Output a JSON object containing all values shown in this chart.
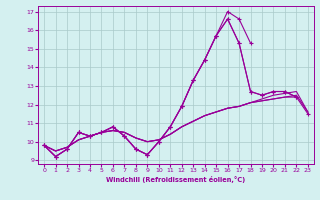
{
  "bg_color": "#d4f0f0",
  "grid_color": "#aacaca",
  "line_color": "#990099",
  "xlim": [
    -0.5,
    23.5
  ],
  "ylim": [
    8.8,
    17.3
  ],
  "xticks": [
    0,
    1,
    2,
    3,
    4,
    5,
    6,
    7,
    8,
    9,
    10,
    11,
    12,
    13,
    14,
    15,
    16,
    17,
    18,
    19,
    20,
    21,
    22,
    23
  ],
  "yticks": [
    9,
    10,
    11,
    12,
    13,
    14,
    15,
    16,
    17
  ],
  "xlabel": "Windchill (Refroidissement éolien,°C)",
  "x": [
    0,
    1,
    2,
    3,
    4,
    5,
    6,
    7,
    8,
    9,
    10,
    11,
    12,
    13,
    14,
    15,
    16,
    17,
    18,
    19,
    20,
    21,
    22,
    23
  ],
  "line1_x": [
    0,
    1,
    2,
    3,
    4,
    5,
    6,
    7,
    8,
    9,
    10,
    11,
    12,
    13,
    14,
    15,
    16,
    17,
    18
  ],
  "line1_y": [
    9.8,
    9.2,
    9.6,
    10.5,
    10.3,
    10.5,
    10.8,
    10.3,
    9.6,
    9.3,
    10.0,
    10.8,
    11.9,
    13.3,
    14.4,
    15.7,
    17.0,
    16.6,
    15.3
  ],
  "line2_x": [
    0,
    1,
    2,
    3,
    4,
    5,
    6,
    7,
    8,
    9,
    10,
    11,
    12,
    13,
    14,
    15,
    16,
    17,
    18,
    19,
    20,
    21,
    22
  ],
  "line2_y": [
    9.8,
    9.2,
    9.6,
    10.5,
    10.3,
    10.5,
    10.8,
    10.3,
    9.6,
    9.3,
    10.0,
    10.8,
    11.9,
    13.3,
    14.4,
    15.7,
    16.6,
    15.3,
    12.7,
    12.5,
    12.7,
    12.7,
    12.4
  ],
  "line3_x": [
    0,
    1,
    2,
    3,
    4,
    5,
    6,
    7,
    8,
    9,
    10,
    11,
    12,
    13,
    14,
    15,
    16,
    17,
    18,
    19,
    20,
    21,
    22,
    23
  ],
  "line3_y": [
    9.8,
    9.2,
    9.6,
    10.5,
    10.3,
    10.5,
    10.8,
    10.3,
    9.6,
    9.3,
    10.0,
    10.8,
    11.9,
    13.3,
    14.4,
    15.7,
    16.6,
    15.3,
    12.7,
    12.5,
    12.7,
    12.7,
    12.4,
    11.5
  ],
  "smooth1_x": [
    0,
    1,
    2,
    3,
    4,
    5,
    6,
    7,
    8,
    9,
    10,
    11,
    12,
    13,
    14,
    15,
    16,
    17,
    18,
    19,
    20,
    21,
    22
  ],
  "smooth1_y": [
    9.8,
    9.5,
    9.7,
    10.1,
    10.3,
    10.5,
    10.6,
    10.5,
    10.2,
    10.0,
    10.1,
    10.4,
    10.8,
    11.1,
    11.4,
    11.6,
    11.8,
    11.9,
    12.1,
    12.2,
    12.3,
    12.4,
    12.4
  ],
  "smooth2_x": [
    0,
    1,
    2,
    3,
    4,
    5,
    6,
    7,
    8,
    9,
    10,
    11,
    12,
    13,
    14,
    15,
    16,
    17,
    18,
    19,
    20,
    21,
    22,
    23
  ],
  "smooth2_y": [
    9.8,
    9.5,
    9.7,
    10.1,
    10.3,
    10.5,
    10.6,
    10.5,
    10.2,
    10.0,
    10.1,
    10.4,
    10.8,
    11.1,
    11.4,
    11.6,
    11.8,
    11.9,
    12.1,
    12.2,
    12.3,
    12.4,
    12.5,
    11.6
  ],
  "smooth3_x": [
    0,
    1,
    2,
    3,
    4,
    5,
    6,
    7,
    8,
    9,
    10,
    11,
    12,
    13,
    14,
    15,
    16,
    17,
    18,
    19,
    20,
    21,
    22,
    23
  ],
  "smooth3_y": [
    9.8,
    9.5,
    9.7,
    10.1,
    10.3,
    10.5,
    10.6,
    10.5,
    10.2,
    10.0,
    10.1,
    10.4,
    10.8,
    11.1,
    11.4,
    11.6,
    11.8,
    11.9,
    12.1,
    12.3,
    12.5,
    12.6,
    12.7,
    11.6
  ]
}
